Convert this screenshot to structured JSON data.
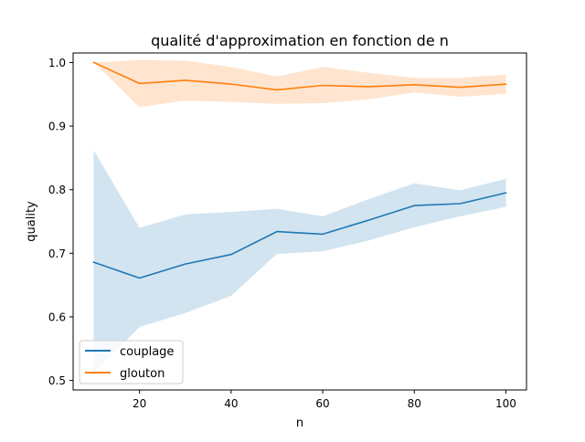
{
  "chart_data": {
    "type": "line",
    "title": "qualité d'approximation en fonction de n",
    "xlabel": "n",
    "ylabel": "quality",
    "xlim": [
      5.5,
      104.5
    ],
    "ylim": [
      0.485,
      1.015
    ],
    "x_ticks": [
      20,
      40,
      60,
      80,
      100
    ],
    "y_ticks": [
      0.5,
      0.6,
      0.7,
      0.8,
      0.9,
      1.0
    ],
    "x_tick_labels": [
      "20",
      "40",
      "60",
      "80",
      "100"
    ],
    "y_tick_labels": [
      "0.5",
      "0.6",
      "0.7",
      "0.8",
      "0.9",
      "1.0"
    ],
    "grid": false,
    "legend_position": "lower-left",
    "x": [
      10,
      20,
      30,
      40,
      50,
      60,
      70,
      80,
      90,
      100
    ],
    "series": [
      {
        "name": "couplage",
        "color": "#1f77b4",
        "band_color": "#1f77b4",
        "values": [
          0.686,
          0.661,
          0.683,
          0.698,
          0.734,
          0.73,
          0.752,
          0.775,
          0.778,
          0.795
        ],
        "lower": [
          0.512,
          0.584,
          0.606,
          0.633,
          0.699,
          0.703,
          0.72,
          0.741,
          0.758,
          0.773
        ],
        "upper": [
          0.862,
          0.74,
          0.761,
          0.765,
          0.77,
          0.758,
          0.785,
          0.81,
          0.799,
          0.817
        ]
      },
      {
        "name": "glouton",
        "color": "#ff7f0e",
        "band_color": "#ff7f0e",
        "values": [
          1.0,
          0.967,
          0.972,
          0.966,
          0.957,
          0.964,
          0.962,
          0.965,
          0.961,
          0.966
        ],
        "lower": [
          1.0,
          0.93,
          0.94,
          0.938,
          0.935,
          0.936,
          0.942,
          0.953,
          0.946,
          0.951
        ],
        "upper": [
          1.0,
          1.004,
          1.003,
          0.993,
          0.978,
          0.993,
          0.984,
          0.976,
          0.976,
          0.981
        ]
      }
    ]
  }
}
